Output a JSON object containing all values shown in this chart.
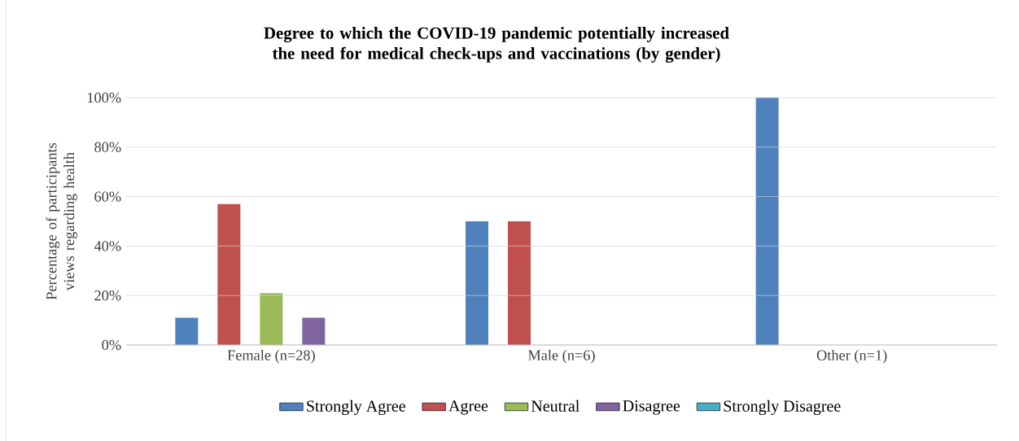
{
  "chart_data": {
    "type": "bar",
    "title": "Degree to which the COVID-19 pandemic potentially increased the need for medical check-ups and vaccinations (by gender)",
    "ylabel": "Percentage of participants views regarding health",
    "categories": [
      "Female (n=28)",
      "Male (n=6)",
      "Other (n=1)"
    ],
    "series": [
      {
        "name": "Strongly Agree",
        "color": "#4f81bd",
        "values": [
          11,
          50,
          100
        ]
      },
      {
        "name": "Agree",
        "color": "#c0504d",
        "values": [
          57,
          50,
          0
        ]
      },
      {
        "name": "Neutral",
        "color": "#9bbb59",
        "values": [
          21,
          0,
          0
        ]
      },
      {
        "name": "Disagree",
        "color": "#8064a2",
        "values": [
          11,
          0,
          0
        ]
      },
      {
        "name": "Strongly Disagree",
        "color": "#4bacc6",
        "values": [
          0,
          0,
          0
        ]
      }
    ],
    "ylim": [
      0,
      100
    ],
    "yticks": [
      {
        "value": 0,
        "label": "0%"
      },
      {
        "value": 20,
        "label": "20%"
      },
      {
        "value": 40,
        "label": "40%"
      },
      {
        "value": 60,
        "label": "60%"
      },
      {
        "value": 80,
        "label": "80%"
      },
      {
        "value": 100,
        "label": "100%"
      }
    ],
    "grid": "y",
    "legend": "bottom"
  }
}
